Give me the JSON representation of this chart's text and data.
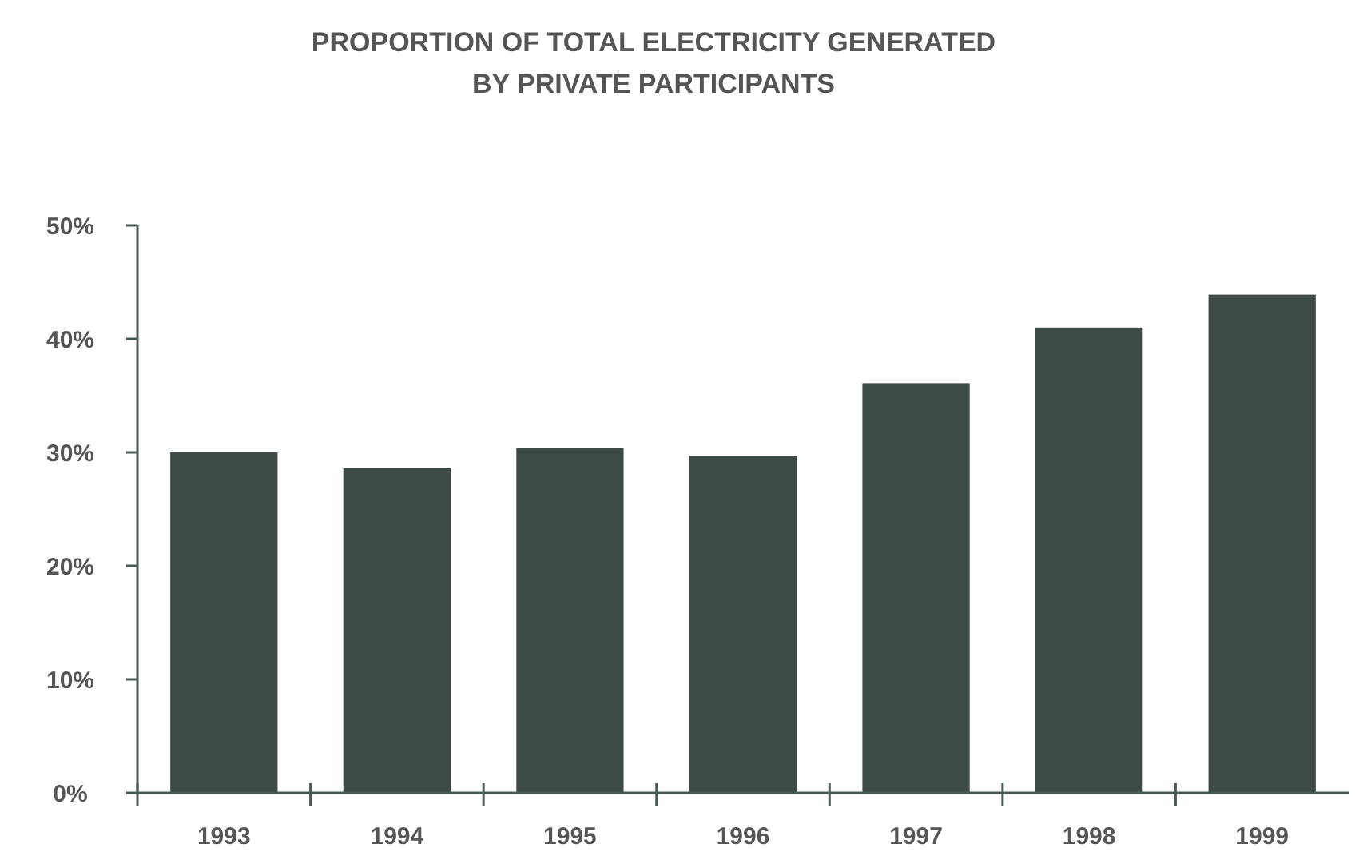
{
  "chart_data": {
    "type": "bar",
    "title": "PROPORTION OF TOTAL ELECTRICITY GENERATED\nBY PRIVATE PARTICIPANTS",
    "categories": [
      "1993",
      "1994",
      "1995",
      "1996",
      "1997",
      "1998",
      "1999"
    ],
    "values": [
      30.0,
      28.6,
      30.4,
      29.7,
      36.1,
      41.0,
      43.9
    ],
    "color": "#3d4a47",
    "ylim": [
      0,
      50
    ],
    "yticks": [
      {
        "value": 0,
        "label": "0%"
      },
      {
        "value": 10,
        "label": "10%"
      },
      {
        "value": 20,
        "label": "20%"
      },
      {
        "value": 30,
        "label": "30%"
      },
      {
        "value": 40,
        "label": "40%"
      },
      {
        "value": 50,
        "label": "50%"
      }
    ],
    "grid": false
  }
}
